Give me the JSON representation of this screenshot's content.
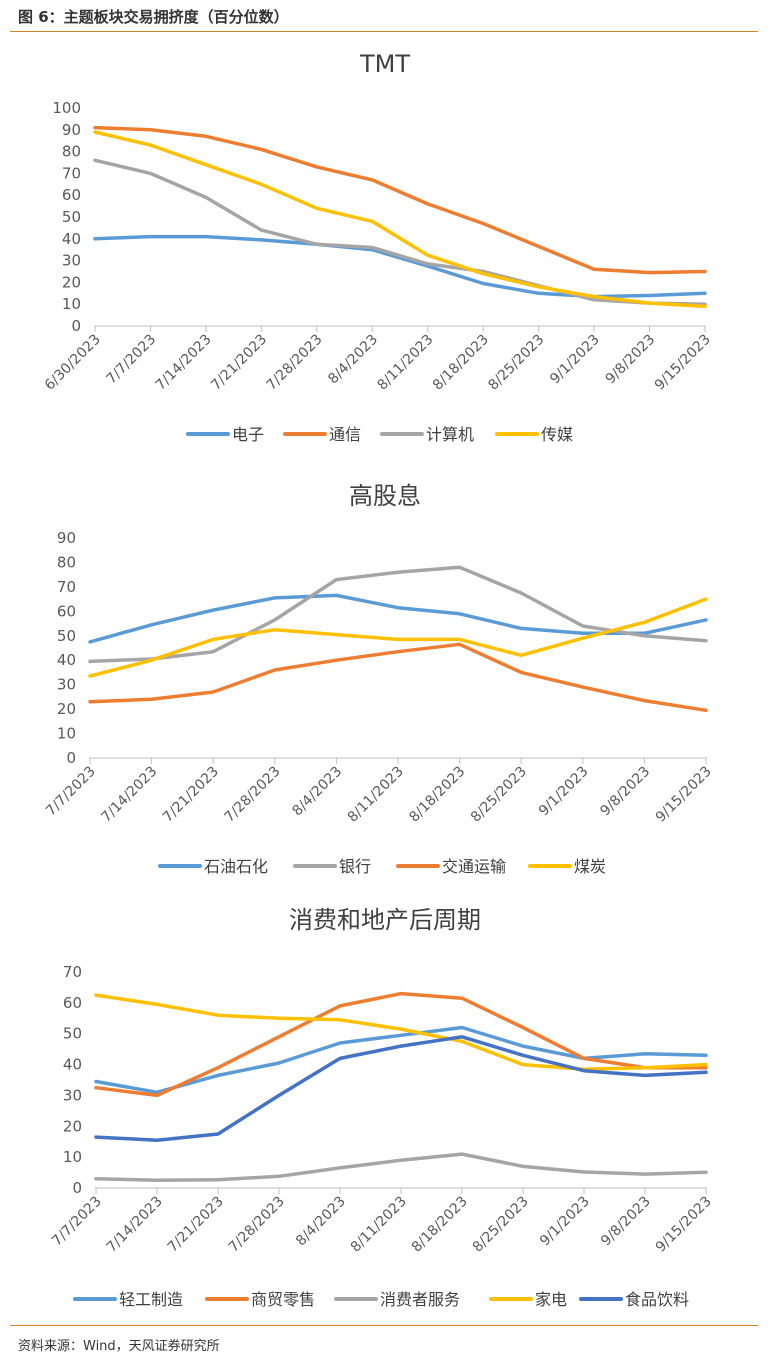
{
  "figure_title": "图 6：主题板块交易拥挤度（百分位数）",
  "source": "资料来源：Wind，天风证券研究所",
  "chart_data": [
    {
      "type": "line",
      "title": "TMT",
      "ylim": [
        0,
        100
      ],
      "yticks": [
        0,
        10,
        20,
        30,
        40,
        50,
        60,
        70,
        80,
        90,
        100
      ],
      "legend": "bottom",
      "grid": false,
      "categories": [
        "6/30/2023",
        "7/7/2023",
        "7/14/2023",
        "7/21/2023",
        "7/28/2023",
        "8/4/2023",
        "8/11/2023",
        "8/18/2023",
        "8/25/2023",
        "9/1/2023",
        "9/8/2023",
        "9/15/2023"
      ],
      "series": [
        {
          "name": "电子",
          "color": "#5b9bd5",
          "values": [
            40,
            41,
            41,
            39.5,
            37.5,
            35,
            27.5,
            19.5,
            15,
            13.5,
            14,
            15
          ]
        },
        {
          "name": "通信",
          "color": "#ed7d31",
          "values": [
            91,
            90,
            87,
            81,
            73,
            67,
            56,
            47,
            36.5,
            26,
            24.5,
            25
          ]
        },
        {
          "name": "计算机",
          "color": "#a5a5a5",
          "values": [
            76,
            70,
            59,
            44,
            37.5,
            36,
            28.5,
            25,
            18.5,
            12,
            10.5,
            10
          ]
        },
        {
          "name": "传媒",
          "color": "#ffc000",
          "values": [
            89,
            83,
            74,
            65,
            54,
            48,
            32.5,
            24,
            18,
            13.5,
            10.5,
            9
          ]
        }
      ]
    },
    {
      "type": "line",
      "title": "高股息",
      "ylim": [
        0,
        90
      ],
      "yticks": [
        0,
        10,
        20,
        30,
        40,
        50,
        60,
        70,
        80,
        90
      ],
      "legend": "bottom",
      "grid": false,
      "categories": [
        "7/7/2023",
        "7/14/2023",
        "7/21/2023",
        "7/28/2023",
        "8/4/2023",
        "8/11/2023",
        "8/18/2023",
        "8/25/2023",
        "9/1/2023",
        "9/8/2023",
        "9/15/2023"
      ],
      "series": [
        {
          "name": "石油石化",
          "color": "#5b9bd5",
          "values": [
            47.5,
            54.5,
            60.5,
            65.5,
            66.5,
            61.5,
            59,
            53,
            51,
            51,
            56.5
          ]
        },
        {
          "name": "银行",
          "color": "#a5a5a5",
          "values": [
            39.5,
            40.5,
            43.5,
            56.5,
            73,
            76,
            78,
            67.5,
            54,
            50,
            48
          ]
        },
        {
          "name": "交通运输",
          "color": "#ed7d31",
          "values": [
            23,
            24,
            27,
            36,
            40,
            43.5,
            46.5,
            35,
            29,
            23.5,
            19.5
          ]
        },
        {
          "name": "煤炭",
          "color": "#ffc000",
          "values": [
            33.5,
            40,
            48.5,
            52.5,
            50.5,
            48.5,
            48.5,
            42,
            49,
            55.5,
            65
          ]
        }
      ]
    },
    {
      "type": "line",
      "title": "消费和地产后周期",
      "ylim": [
        0,
        70
      ],
      "yticks": [
        0,
        10,
        20,
        30,
        40,
        50,
        60,
        70
      ],
      "legend": "bottom",
      "grid": false,
      "categories": [
        "7/7/2023",
        "7/14/2023",
        "7/21/2023",
        "7/28/2023",
        "8/4/2023",
        "8/11/2023",
        "8/18/2023",
        "8/25/2023",
        "9/1/2023",
        "9/8/2023",
        "9/15/2023"
      ],
      "series": [
        {
          "name": "轻工制造",
          "color": "#5b9bd5",
          "values": [
            34.5,
            31,
            36.5,
            40.5,
            47,
            49.5,
            52,
            46,
            42,
            43.5,
            43
          ]
        },
        {
          "name": "商贸零售",
          "color": "#ed7d31",
          "values": [
            32.5,
            30,
            39,
            49,
            59,
            63,
            61.5,
            52,
            42,
            39,
            39
          ]
        },
        {
          "name": "消费者服务",
          "color": "#a5a5a5",
          "values": [
            3,
            2.5,
            2.7,
            3.8,
            6.5,
            9,
            11,
            7,
            5.2,
            4.5,
            5.1
          ]
        },
        {
          "name": "家电",
          "color": "#ffc000",
          "values": [
            62.5,
            59.5,
            56,
            55,
            54.5,
            51.5,
            47.5,
            40,
            38.5,
            39,
            40
          ]
        },
        {
          "name": "食品饮料",
          "color": "#4472c4",
          "values": [
            16.5,
            15.5,
            17.5,
            30,
            42,
            46,
            49,
            43,
            38,
            36.5,
            37.5
          ]
        }
      ]
    }
  ]
}
